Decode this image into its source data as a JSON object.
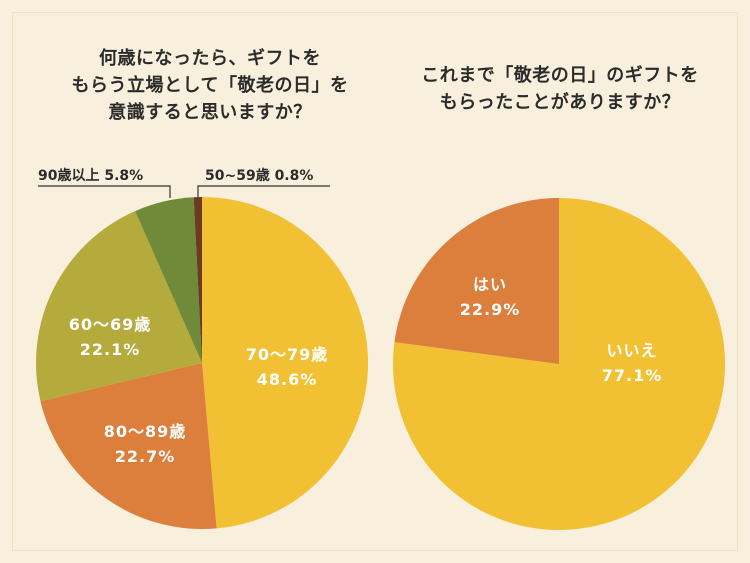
{
  "chart_data": [
    {
      "type": "pie",
      "title_lines": [
        "何歳になったら、ギフトを",
        "もらう立場として「敬老の日」を",
        "意識すると思いますか？"
      ],
      "slices": [
        {
          "label": "70〜79歳",
          "value": 48.6,
          "display": "48.6%",
          "color": "#f2c033"
        },
        {
          "label": "80〜89歳",
          "value": 22.7,
          "display": "22.7%",
          "color": "#dc7e3c"
        },
        {
          "label": "60〜69歳",
          "value": 22.1,
          "display": "22.1%",
          "color": "#b4ab3c"
        },
        {
          "label": "90歳以上",
          "value": 5.8,
          "display": "5.8%",
          "color": "#6f8a38"
        },
        {
          "label": "50~59歳",
          "value": 0.8,
          "display": "0.8%",
          "color": "#6b3a1f"
        }
      ]
    },
    {
      "type": "pie",
      "title_lines": [
        "これまで「敬老の日」のギフトを",
        "もらったことがありますか？"
      ],
      "slices": [
        {
          "label": "いいえ",
          "value": 77.1,
          "display": "77.1%",
          "color": "#f2c033"
        },
        {
          "label": "はい",
          "value": 22.9,
          "display": "22.9%",
          "color": "#dc7e3c"
        }
      ]
    }
  ]
}
